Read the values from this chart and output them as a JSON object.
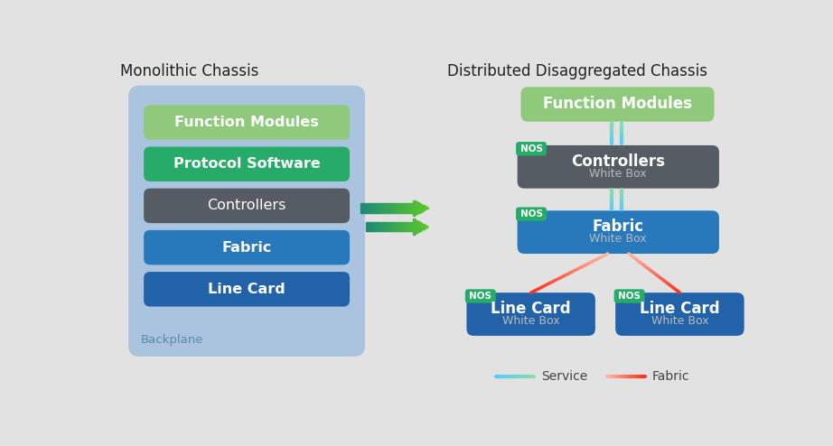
{
  "bg_color": "#e2e2e2",
  "left_title": "Monolithic Chassis",
  "right_title": "Distributed Disaggregated Chassis",
  "backplane_color": "#aac4e0",
  "func_mod_color": "#8fca7c",
  "protocol_color": "#27ab68",
  "controllers_color": "#555c63",
  "fabric_color": "#2878bc",
  "linecard_color": "#2262a8",
  "nos_color": "#27ab68",
  "mono_blocks": [
    {
      "label": "Function Modules",
      "color": "#8fca7c",
      "bold": true
    },
    {
      "label": "Protocol Software",
      "color": "#27ab68",
      "bold": true
    },
    {
      "label": "Controllers",
      "color": "#555c63",
      "bold": false
    },
    {
      "label": "Fabric",
      "color": "#2878bc",
      "bold": true
    },
    {
      "label": "Line Card",
      "color": "#2262a8",
      "bold": true
    }
  ],
  "arrow_color_left": "#1a8a78",
  "arrow_color_right": "#5cc82a",
  "service_color_top": "#55ccff",
  "service_color_bot": "#88ddaa",
  "fabric_line_color_top": "#ffbbaa",
  "fabric_line_color_bot": "#ff3322"
}
